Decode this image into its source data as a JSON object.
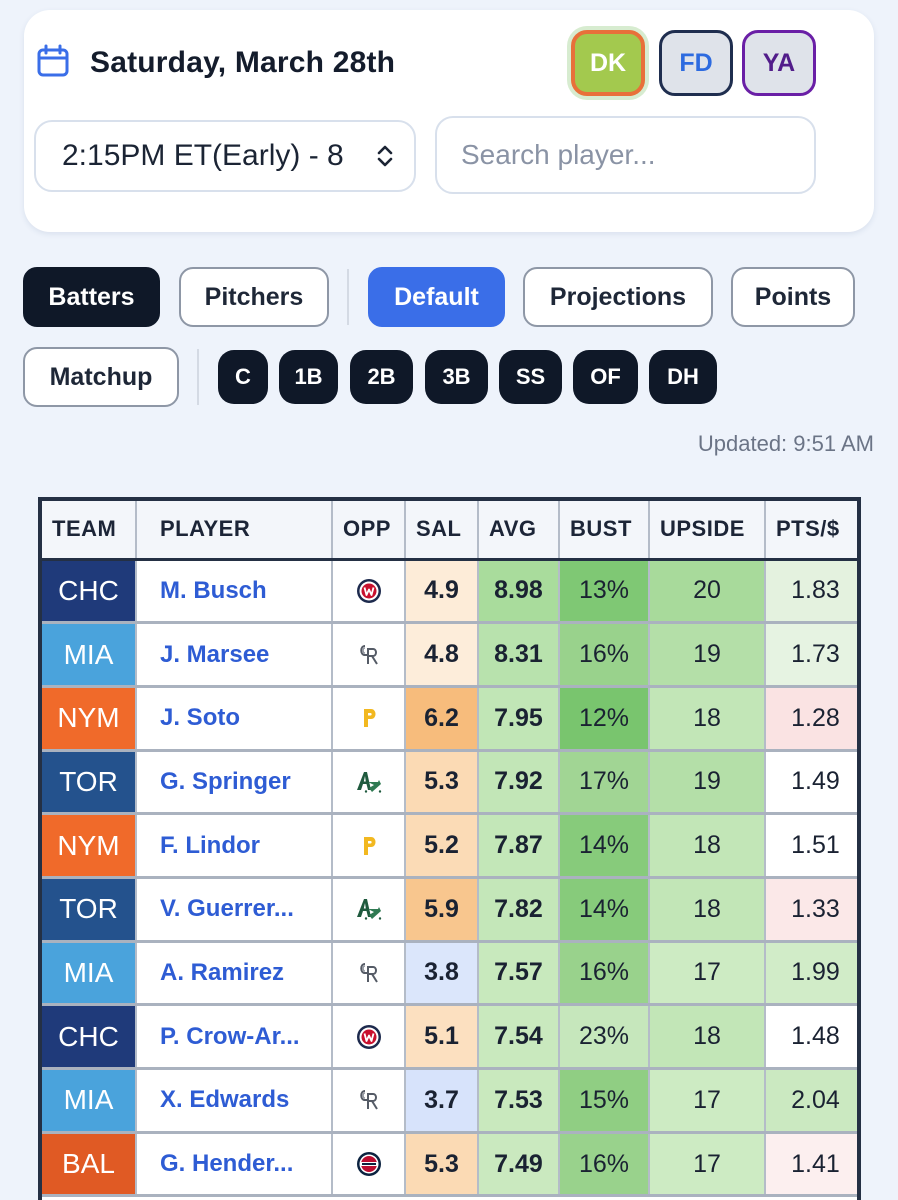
{
  "header": {
    "date": "Saturday, March 28th",
    "sites": [
      "DK",
      "FD",
      "YA"
    ],
    "slate": "2:15PM ET(Early) - 8",
    "search_placeholder": "Search player..."
  },
  "filters": {
    "player_type": [
      "Batters",
      "Pitchers"
    ],
    "views": [
      "Default",
      "Projections",
      "Points",
      "Matchup"
    ],
    "positions": [
      "C",
      "1B",
      "2B",
      "3B",
      "SS",
      "OF",
      "DH"
    ],
    "selected_player_type": "Batters",
    "selected_view": "Default"
  },
  "updated": "Updated: 9:51 AM",
  "table": {
    "columns": [
      "TEAM",
      "PLAYER",
      "OPP",
      "SAL",
      "AVG",
      "BUST",
      "UPSIDE",
      "PTS/$"
    ],
    "rows": [
      {
        "team": "CHC",
        "player": "M. Busch",
        "opp_icon": "nationals-logo-icon",
        "sal": "4.9",
        "avg": "8.98",
        "bust": "13%",
        "upside": "20",
        "pts": "1.83"
      },
      {
        "team": "MIA",
        "player": "J. Marsee",
        "opp_icon": "rockies-logo-icon",
        "sal": "4.8",
        "avg": "8.31",
        "bust": "16%",
        "upside": "19",
        "pts": "1.73"
      },
      {
        "team": "NYM",
        "player": "J. Soto",
        "opp_icon": "pirates-logo-icon",
        "sal": "6.2",
        "avg": "7.95",
        "bust": "12%",
        "upside": "18",
        "pts": "1.28"
      },
      {
        "team": "TOR",
        "player": "G. Springer",
        "opp_icon": "athletics-logo-icon",
        "sal": "5.3",
        "avg": "7.92",
        "bust": "17%",
        "upside": "19",
        "pts": "1.49"
      },
      {
        "team": "NYM",
        "player": "F. Lindor",
        "opp_icon": "pirates-logo-icon",
        "sal": "5.2",
        "avg": "7.87",
        "bust": "14%",
        "upside": "18",
        "pts": "1.51"
      },
      {
        "team": "TOR",
        "player": "V. Guerrer...",
        "opp_icon": "athletics-logo-icon",
        "sal": "5.9",
        "avg": "7.82",
        "bust": "14%",
        "upside": "18",
        "pts": "1.33"
      },
      {
        "team": "MIA",
        "player": "A. Ramirez",
        "opp_icon": "rockies-logo-icon",
        "sal": "3.8",
        "avg": "7.57",
        "bust": "16%",
        "upside": "17",
        "pts": "1.99"
      },
      {
        "team": "CHC",
        "player": "P. Crow-Ar...",
        "opp_icon": "nationals-logo-icon",
        "sal": "5.1",
        "avg": "7.54",
        "bust": "23%",
        "upside": "18",
        "pts": "1.48"
      },
      {
        "team": "MIA",
        "player": "X. Edwards",
        "opp_icon": "rockies-logo-icon",
        "sal": "3.7",
        "avg": "7.53",
        "bust": "15%",
        "upside": "17",
        "pts": "2.04"
      },
      {
        "team": "BAL",
        "player": "G. Hender...",
        "opp_icon": "twins-logo-icon",
        "sal": "5.3",
        "avg": "7.49",
        "bust": "16%",
        "upside": "17",
        "pts": "1.41"
      }
    ]
  },
  "colors": {
    "team": {
      "CHC": "#1f3a7a",
      "MIA": "#4aa3dc",
      "NYM": "#f06a2a",
      "TOR": "#24528d",
      "BAL": "#e05a24"
    },
    "sal": {
      "4.9": "#fdecd8",
      "4.8": "#fdedda",
      "6.2": "#f7bc7c",
      "5.3": "#fbdab4",
      "5.2": "#fbdbb6",
      "5.9": "#f8c68e",
      "3.8": "#dbe6fb",
      "5.1": "#fce0c0",
      "3.7": "#d7e3fb"
    },
    "avg": {
      "8.98": "#a9dc9c",
      "8.31": "#b8e2ad",
      "7.95": "#c1e6b6",
      "7.92": "#c2e6b7",
      "7.87": "#c3e7b8",
      "7.82": "#c4e7b9",
      "7.57": "#c8e9bd",
      "7.54": "#c9e9be",
      "7.53": "#c9e9be",
      "7.49": "#cae9bf"
    },
    "bust": {
      "13%": "#7fc874",
      "16%": "#99d28c",
      "12%": "#79c56e",
      "17%": "#a1d594",
      "14%": "#87cb7b",
      "23%": "#c6e7bc",
      "15%": "#90ce83"
    },
    "upside": {
      "20": "#a8da9b",
      "19": "#b4dfa8",
      "18": "#c2e6b7",
      "17": "#cdebc3"
    },
    "pts": {
      "1.83": "#e4f2df",
      "1.73": "#e6f3e2",
      "1.28": "#fae3e3",
      "1.49": "#ffffff",
      "1.51": "#ffffff",
      "1.33": "#fbe8e8",
      "1.99": "#d1ecc8",
      "1.48": "#ffffff",
      "2.04": "#cbe9c1",
      "1.41": "#fcefef"
    }
  }
}
